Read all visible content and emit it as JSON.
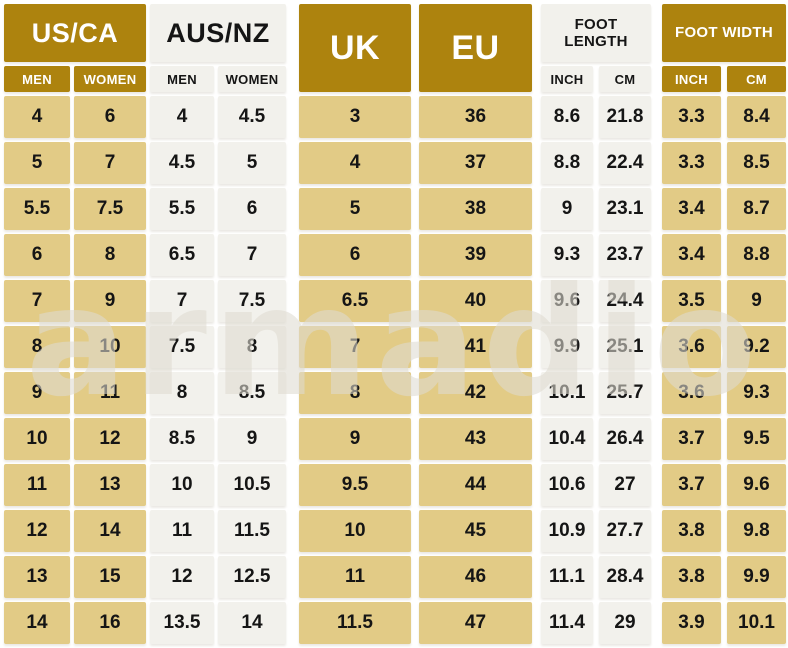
{
  "chart_data": {
    "type": "table",
    "groups": [
      {
        "label": "US/CA",
        "sub": [
          "MEN",
          "WOMEN"
        ]
      },
      {
        "label": "AUS/NZ",
        "sub": [
          "MEN",
          "WOMEN"
        ]
      },
      {
        "label": "UK",
        "sub": []
      },
      {
        "label": "EU",
        "sub": []
      },
      {
        "label": "FOOT LENGTH",
        "sub": [
          "INCH",
          "CM"
        ]
      },
      {
        "label": "FOOT WIDTH",
        "sub": [
          "INCH",
          "CM"
        ]
      }
    ],
    "rows": [
      [
        "4",
        "6",
        "4",
        "4.5",
        "3",
        "36",
        "8.6",
        "21.8",
        "3.3",
        "8.4"
      ],
      [
        "5",
        "7",
        "4.5",
        "5",
        "4",
        "37",
        "8.8",
        "22.4",
        "3.3",
        "8.5"
      ],
      [
        "5.5",
        "7.5",
        "5.5",
        "6",
        "5",
        "38",
        "9",
        "23.1",
        "3.4",
        "8.7"
      ],
      [
        "6",
        "8",
        "6.5",
        "7",
        "6",
        "39",
        "9.3",
        "23.7",
        "3.4",
        "8.8"
      ],
      [
        "7",
        "9",
        "7",
        "7.5",
        "6.5",
        "40",
        "9.6",
        "24.4",
        "3.5",
        "9"
      ],
      [
        "8",
        "10",
        "7.5",
        "8",
        "7",
        "41",
        "9.9",
        "25.1",
        "3.6",
        "9.2"
      ],
      [
        "9",
        "11",
        "8",
        "8.5",
        "8",
        "42",
        "10.1",
        "25.7",
        "3.6",
        "9.3"
      ],
      [
        "10",
        "12",
        "8.5",
        "9",
        "9",
        "43",
        "10.4",
        "26.4",
        "3.7",
        "9.5"
      ],
      [
        "11",
        "13",
        "10",
        "10.5",
        "9.5",
        "44",
        "10.6",
        "27",
        "3.7",
        "9.6"
      ],
      [
        "12",
        "14",
        "11",
        "11.5",
        "10",
        "45",
        "10.9",
        "27.7",
        "3.8",
        "9.8"
      ],
      [
        "13",
        "15",
        "12",
        "12.5",
        "11",
        "46",
        "11.1",
        "28.4",
        "3.8",
        "9.9"
      ],
      [
        "14",
        "16",
        "13.5",
        "14",
        "11.5",
        "47",
        "11.4",
        "29",
        "3.9",
        "10.1"
      ]
    ]
  },
  "watermark": {
    "text": "armadio"
  },
  "colors": {
    "gold": "#ad830e",
    "tan": "#e2cb86",
    "light_gray": "#f2f1ec",
    "text_dark": "#151515",
    "text_light": "#ffffff",
    "background": "#ffffff"
  }
}
